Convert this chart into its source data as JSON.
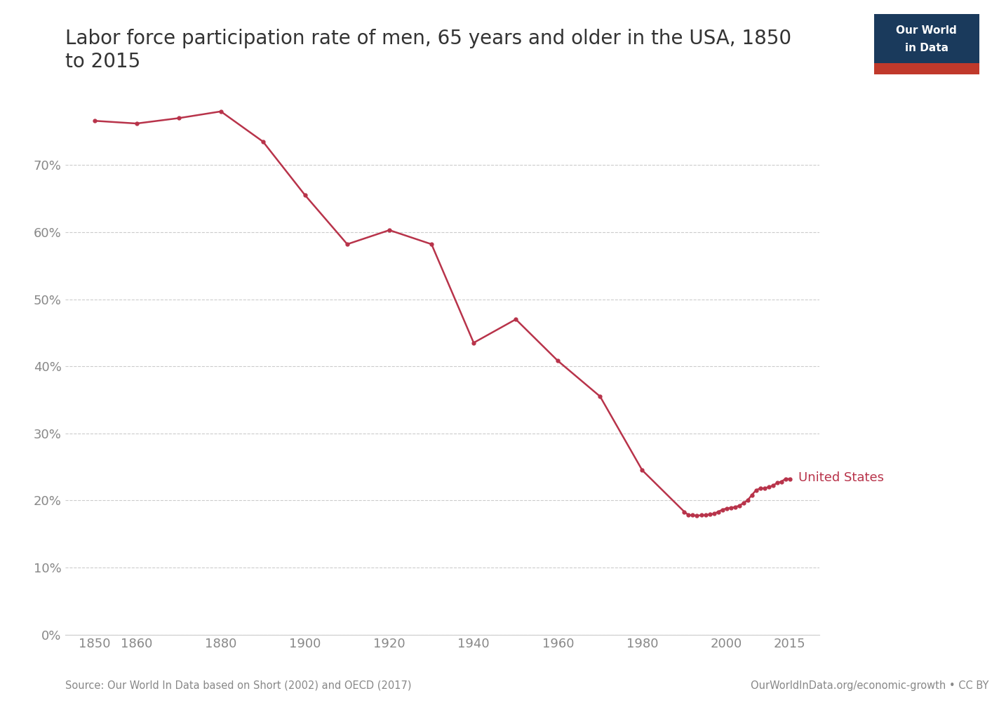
{
  "title": "Labor force participation rate of men, 65 years and older in the USA, 1850\nto 2015",
  "source_text": "Source: Our World In Data based on Short (2002) and OECD (2017)",
  "source_right": "OurWorldInData.org/economic-growth • CC BY",
  "logo_text1": "Our World",
  "logo_text2": "in Data",
  "line_color": "#b8334a",
  "background_color": "#ffffff",
  "label": "United States",
  "years": [
    1850,
    1860,
    1870,
    1880,
    1890,
    1900,
    1910,
    1920,
    1930,
    1940,
    1950,
    1960,
    1970,
    1980,
    1990,
    1991,
    1992,
    1993,
    1994,
    1995,
    1996,
    1997,
    1998,
    1999,
    2000,
    2001,
    2002,
    2003,
    2004,
    2005,
    2006,
    2007,
    2008,
    2009,
    2010,
    2011,
    2012,
    2013,
    2014,
    2015
  ],
  "values": [
    0.766,
    0.762,
    0.77,
    0.78,
    0.735,
    0.655,
    0.582,
    0.603,
    0.582,
    0.435,
    0.47,
    0.408,
    0.355,
    0.245,
    0.183,
    0.178,
    0.178,
    0.177,
    0.178,
    0.178,
    0.179,
    0.18,
    0.183,
    0.186,
    0.188,
    0.189,
    0.19,
    0.192,
    0.196,
    0.2,
    0.208,
    0.215,
    0.218,
    0.218,
    0.22,
    0.222,
    0.226,
    0.228,
    0.232,
    0.232
  ],
  "ylim": [
    0,
    0.82
  ],
  "xlim": [
    1843,
    2022
  ],
  "yticks": [
    0,
    0.1,
    0.2,
    0.3,
    0.4,
    0.5,
    0.6,
    0.7
  ],
  "xticks": [
    1850,
    1860,
    1880,
    1900,
    1920,
    1940,
    1960,
    1980,
    2000,
    2015
  ],
  "grid_color": "#cccccc",
  "tick_label_color": "#888888",
  "title_fontsize": 20,
  "axis_fontsize": 13,
  "label_fontsize": 13,
  "logo_bg_color": "#1a3a5c",
  "logo_red_color": "#c0392b"
}
